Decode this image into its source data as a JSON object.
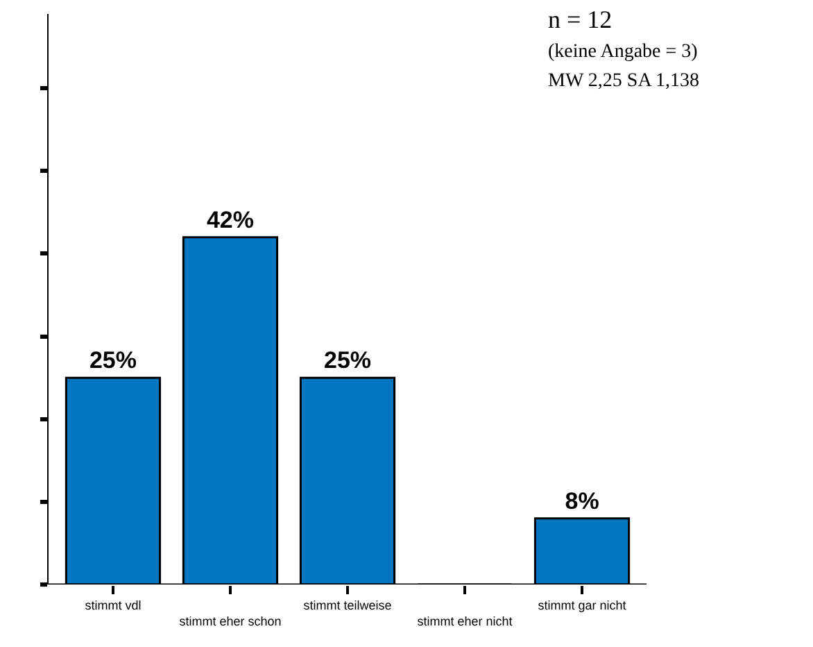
{
  "chart_data": {
    "type": "bar",
    "categories": [
      "stimmt vdl",
      "stimmt eher schon",
      "stimmt teilweise",
      "stimmt eher nicht",
      "stimmt gar nicht"
    ],
    "values": [
      25,
      42,
      25,
      0,
      8
    ],
    "value_labels": [
      "25%",
      "42%",
      "25%",
      null,
      "8%"
    ],
    "color": "#0077c0",
    "ylim": [
      0,
      69
    ],
    "yticks": [
      {
        "value": 0,
        "label": null
      },
      {
        "value": 10,
        "label": null
      },
      {
        "value": 20,
        "label": null
      },
      {
        "value": 30,
        "label": null
      },
      {
        "value": 40,
        "label": null
      },
      {
        "value": 50,
        "label": null
      },
      {
        "value": 60,
        "label": null
      }
    ],
    "annotations": [
      "n = 12",
      "(keine Angabe = 3)",
      "MW 2,25 SA 1,138"
    ],
    "legend": false
  }
}
